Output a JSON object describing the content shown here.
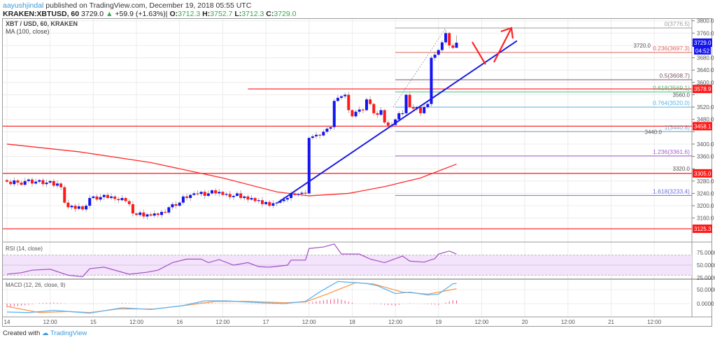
{
  "header": {
    "user": "aayushjindal",
    "published": " published on TradingView.com, December 19, 2018 05:55 UTC",
    "symbol": "KRAKEN:XBTUSD, 60",
    "last": "3729.0",
    "change": "+59.9 (+1.63%)",
    "o_label": "O:",
    "o": "3712.3",
    "h_label": "H:",
    "h": "3752.7",
    "l_label": "L:",
    "l": "3712.3",
    "c_label": "C:",
    "c": "3729.0"
  },
  "footer": {
    "created_with": "Created with",
    "brand": "TradingView"
  },
  "colors": {
    "up": "#1414f0",
    "down": "#ff1a1a",
    "ma": "#ff2a2a",
    "rsi": "#a24fc2",
    "rsi_band": "#f3e3fb",
    "macd": "#5ab4f5",
    "signal": "#ff9a4d",
    "histogram": "#f0508a",
    "trendline": "#1a1ae0",
    "annotation": "#ff2020"
  },
  "chart_data": [
    {
      "type": "candlestick",
      "title": "XBT / USD, 60, KRAKEN",
      "indicator_label": "MA (100, close)",
      "interval": "60",
      "first_bar": "2018-12-14T00:00",
      "closes": [
        3278,
        3270,
        3282,
        3275,
        3268,
        3280,
        3285,
        3272,
        3278,
        3283,
        3270,
        3275,
        3280,
        3265,
        3272,
        3260,
        3210,
        3195,
        3200,
        3190,
        3198,
        3188,
        3200,
        3225,
        3230,
        3220,
        3228,
        3235,
        3225,
        3230,
        3222,
        3218,
        3225,
        3215,
        3205,
        3175,
        3170,
        3178,
        3165,
        3172,
        3168,
        3175,
        3170,
        3180,
        3178,
        3195,
        3205,
        3200,
        3210,
        3230,
        3225,
        3235,
        3240,
        3238,
        3245,
        3232,
        3240,
        3250,
        3240,
        3245,
        3235,
        3238,
        3228,
        3232,
        3240,
        3225,
        3230,
        3220,
        3225,
        3215,
        3218,
        3205,
        3212,
        3200,
        3208,
        3210,
        3215,
        3220,
        3225,
        3240,
        3235,
        3238,
        3242,
        3240,
        3420,
        3425,
        3430,
        3428,
        3440,
        3450,
        3455,
        3540,
        3550,
        3555,
        3560,
        3510,
        3490,
        3505,
        3512,
        3510,
        3545,
        3530,
        3500,
        3495,
        3510,
        3470,
        3460,
        3462,
        3480,
        3500,
        3500,
        3560,
        3520,
        3515,
        3520,
        3500,
        3520,
        3530,
        3680,
        3690,
        3705,
        3730,
        3760,
        3720,
        3712,
        3729
      ],
      "last_bar": {
        "open": 3712.3,
        "high": 3752.7,
        "low": 3712.3,
        "close": 3729.0
      },
      "ma100": [
        [
          "2018-12-14T00:00",
          3400
        ],
        [
          "2018-12-14T20:00",
          3375
        ],
        [
          "2018-12-15T16:00",
          3340
        ],
        [
          "2018-12-16T12:00",
          3290
        ],
        [
          "2018-12-17T03:00",
          3245
        ],
        [
          "2018-12-17T12:00",
          3232
        ],
        [
          "2018-12-17T23:00",
          3240
        ],
        [
          "2018-12-18T09:00",
          3262
        ],
        [
          "2018-12-18T19:00",
          3290
        ],
        [
          "2018-12-19T05:00",
          3335
        ]
      ],
      "y_ticks": [
        "3800.0",
        "3760.0",
        "3720.0",
        "3680.0",
        "3640.0",
        "3600.0",
        "3560.0",
        "3520.0",
        "3480.0",
        "3440.0",
        "3400.0",
        "3360.0",
        "3320.0",
        "3280.0",
        "3240.0",
        "3200.0",
        "3160.0"
      ],
      "ylim": [
        3115,
        3825
      ],
      "price_badges": [
        {
          "value": 3729.0,
          "label": "3729.0",
          "sub": "04:52",
          "color": "#1414f0"
        },
        {
          "value": 3578.9,
          "label": "3578.9",
          "color": "#ff1a1a"
        },
        {
          "value": 3458.1,
          "label": "3458.1",
          "color": "#ff1a1a"
        },
        {
          "value": 3305.0,
          "label": "3305.0",
          "color": "#ff1a1a"
        },
        {
          "value": 3125.3,
          "label": "3125.3",
          "color": "#ff1a1a"
        }
      ],
      "horizontal_lines": [
        {
          "value": 3578.9,
          "from": "2018-12-16T19:00"
        },
        {
          "value": 3458.1
        },
        {
          "value": 3305.0
        },
        {
          "value": 3125.3
        }
      ],
      "fibonacci": {
        "from": "2018-12-18T12:00",
        "levels": [
          {
            "ratio": "0",
            "value": 3776.5,
            "label": "0(3776.5)",
            "color": "#9e9e9e"
          },
          {
            "ratio": "0.236",
            "value": 3697.3,
            "label": "0.236(3697.3)",
            "color": "#e0605a"
          },
          {
            "ratio": "0.5",
            "value": 3608.7,
            "label": "0.5(3608.7)",
            "color": "#7a5568"
          },
          {
            "ratio": "0.618",
            "value": 3569.1,
            "label": "0.618(3569.1)",
            "color": "#3fc07a"
          },
          {
            "ratio": "0.764",
            "value": 3520.0,
            "label": "0.764(3520.0)",
            "color": "#5ab4e6"
          },
          {
            "ratio": "1",
            "value": 3440.8,
            "label": "1(3440.8)",
            "color": "#6c9fc4"
          },
          {
            "ratio": "1.236",
            "value": 3361.6,
            "label": "1.236(3361.6)",
            "color": "#a35bd6"
          },
          {
            "ratio": "1.618",
            "value": 3233.4,
            "label": "1.618(3233.4)",
            "color": "#6f6fe0"
          }
        ]
      },
      "trendline": [
        [
          "2018-12-16T21:00",
          3210
        ],
        [
          "2018-12-19T14:00",
          3735
        ]
      ],
      "x_ticks": [
        "14",
        "12:00",
        "15",
        "12:00",
        "16",
        "12:00",
        "17",
        "12:00",
        "18",
        "12:00",
        "19",
        "12:00",
        "20",
        "12:00",
        "21",
        "12:00"
      ]
    },
    {
      "type": "line",
      "title": "RSI (14, close)",
      "y_ticks": [
        "75.0000",
        "50.0000",
        "25.0000"
      ],
      "band": [
        30,
        70
      ],
      "values": [
        [
          "2018-12-14T00:00",
          32
        ],
        [
          "2018-12-14T04:00",
          35
        ],
        [
          "2018-12-14T07:00",
          40
        ],
        [
          "2018-12-14T12:00",
          42
        ],
        [
          "2018-12-14T17:00",
          30
        ],
        [
          "2018-12-14T21:00",
          27
        ],
        [
          "2018-12-14T23:00",
          43
        ],
        [
          "2018-12-15T03:00",
          46
        ],
        [
          "2018-12-15T10:00",
          32
        ],
        [
          "2018-12-15T15:00",
          36
        ],
        [
          "2018-12-15T18:00",
          40
        ],
        [
          "2018-12-15T22:00",
          55
        ],
        [
          "2018-12-16T02:00",
          62
        ],
        [
          "2018-12-16T06:00",
          62
        ],
        [
          "2018-12-16T08:00",
          55
        ],
        [
          "2018-12-16T11:00",
          61
        ],
        [
          "2018-12-16T15:00",
          50
        ],
        [
          "2018-12-16T19:00",
          55
        ],
        [
          "2018-12-16T22:00",
          47
        ],
        [
          "2018-12-17T01:00",
          46
        ],
        [
          "2018-12-17T06:00",
          50
        ],
        [
          "2018-12-17T07:00",
          60
        ],
        [
          "2018-12-17T11:00",
          60
        ],
        [
          "2018-12-17T12:00",
          83
        ],
        [
          "2018-12-17T16:00",
          86
        ],
        [
          "2018-12-17T19:00",
          92
        ],
        [
          "2018-12-17T21:00",
          72
        ],
        [
          "2018-12-18T02:00",
          72
        ],
        [
          "2018-12-18T05:00",
          62
        ],
        [
          "2018-12-18T09:00",
          55
        ],
        [
          "2018-12-18T14:00",
          68
        ],
        [
          "2018-12-18T16:00",
          58
        ],
        [
          "2018-12-18T20:00",
          56
        ],
        [
          "2018-12-18T23:00",
          63
        ],
        [
          "2018-12-19T00:00",
          72
        ],
        [
          "2018-12-19T03:00",
          78
        ],
        [
          "2018-12-19T05:00",
          72
        ]
      ]
    },
    {
      "type": "line",
      "title": "MACD (12, 26, close, 9)",
      "y_ticks": [
        "50.0000",
        "0.0000"
      ],
      "series": [
        {
          "key": "macd",
          "values": [
            [
              "2018-12-14T00:00",
              -30
            ],
            [
              "2018-12-14T06:00",
              -32
            ],
            [
              "2018-12-14T13:00",
              -24
            ],
            [
              "2018-12-14T23:00",
              -34
            ],
            [
              "2018-12-15T08:00",
              -15
            ],
            [
              "2018-12-15T16:00",
              -21
            ],
            [
              "2018-12-16T01:00",
              -7
            ],
            [
              "2018-12-16T07:00",
              10
            ],
            [
              "2018-12-16T13:00",
              10
            ],
            [
              "2018-12-16T21:00",
              4
            ],
            [
              "2018-12-17T05:00",
              0
            ],
            [
              "2018-12-17T11:00",
              8
            ],
            [
              "2018-12-17T15:00",
              42
            ],
            [
              "2018-12-17T20:00",
              79
            ],
            [
              "2018-12-18T04:00",
              72
            ],
            [
              "2018-12-18T07:00",
              64
            ],
            [
              "2018-12-18T12:00",
              36
            ],
            [
              "2018-12-18T16:00",
              41
            ],
            [
              "2018-12-18T21:00",
              31
            ],
            [
              "2018-12-19T00:00",
              34
            ],
            [
              "2018-12-19T04:00",
              71
            ],
            [
              "2018-12-19T05:00",
              72
            ]
          ]
        },
        {
          "key": "signal",
          "values": [
            [
              "2018-12-14T00:00",
              -10
            ],
            [
              "2018-12-14T09:00",
              -32
            ],
            [
              "2018-12-14T17:00",
              -28
            ],
            [
              "2018-12-14T23:00",
              -32
            ],
            [
              "2018-12-15T07:00",
              -19
            ],
            [
              "2018-12-15T17:00",
              -19
            ],
            [
              "2018-12-16T03:00",
              -4
            ],
            [
              "2018-12-16T10:00",
              8
            ],
            [
              "2018-12-16T19:00",
              8
            ],
            [
              "2018-12-17T05:00",
              3
            ],
            [
              "2018-12-17T11:00",
              6
            ],
            [
              "2018-12-17T17:00",
              34
            ],
            [
              "2018-12-18T01:00",
              75
            ],
            [
              "2018-12-18T06:00",
              70
            ],
            [
              "2018-12-18T14:00",
              41
            ],
            [
              "2018-12-18T21:00",
              34
            ],
            [
              "2018-12-19T05:00",
              53
            ]
          ]
        }
      ]
    }
  ]
}
